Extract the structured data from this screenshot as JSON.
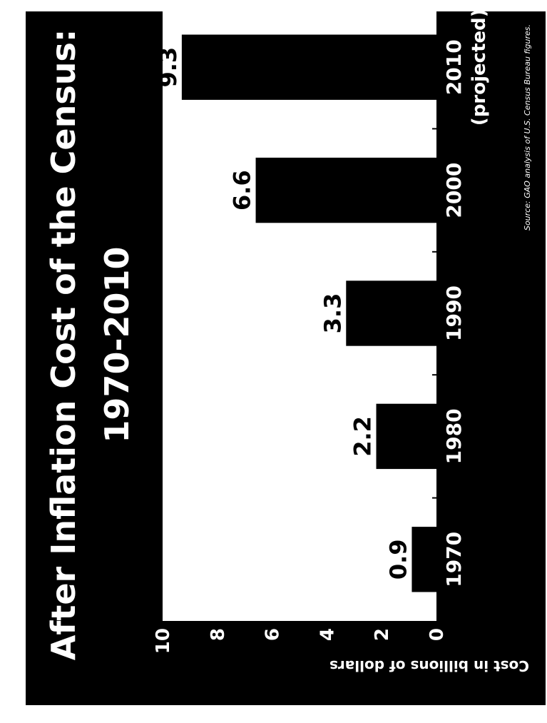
{
  "colors": {
    "page": "#ffffff",
    "panel": "#000000",
    "plot_area": "#ffffff",
    "bar": "#000000",
    "text_on_panel": "#ffffff",
    "text_on_plot": "#000000"
  },
  "chart_data": {
    "type": "bar",
    "orientation": "rotated 90 degrees counter-clockwise",
    "title": "After Inflation Cost of the Census:",
    "subtitle": "1970-2010",
    "ylabel": "Cost in billions of dollars",
    "xlabel": "",
    "ylim": [
      0,
      10
    ],
    "yticks": [
      "0",
      "2",
      "4",
      "6",
      "8",
      "10"
    ],
    "ytick_values": [
      0,
      2,
      4,
      6,
      8,
      10
    ],
    "categories": [
      "1970",
      "1980",
      "1990",
      "2000",
      "2010"
    ],
    "category_sublabels": [
      "",
      "",
      "",
      "",
      "(projected)"
    ],
    "values": [
      0.9,
      2.2,
      3.3,
      6.6,
      9.3
    ],
    "data_labels": [
      "0.9",
      "2.2",
      "3.3",
      "6.6",
      "9.3"
    ],
    "grid": false,
    "legend": "none",
    "source": "Source: GAO analysis of U.S. Census Bureau figures."
  }
}
